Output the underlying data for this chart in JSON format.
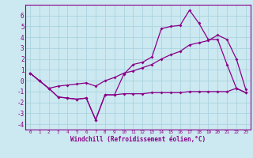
{
  "xlabel": "Windchill (Refroidissement éolien,°C)",
  "x": [
    0,
    1,
    2,
    3,
    4,
    5,
    6,
    7,
    8,
    9,
    10,
    11,
    12,
    13,
    14,
    15,
    16,
    17,
    18,
    19,
    20,
    21,
    22,
    23
  ],
  "line1": [
    0.7,
    0.0,
    -0.7,
    -1.5,
    -1.6,
    -1.7,
    -1.6,
    -3.6,
    -1.3,
    -1.3,
    -1.2,
    -1.2,
    -1.2,
    -1.1,
    -1.1,
    -1.1,
    -1.1,
    -1.0,
    -1.0,
    -1.0,
    -1.0,
    -1.0,
    -0.7,
    -1.1
  ],
  "line2": [
    0.7,
    0.0,
    -0.7,
    -1.5,
    -1.6,
    -1.7,
    -1.6,
    -3.6,
    -1.3,
    -1.3,
    0.6,
    1.5,
    1.7,
    2.2,
    4.8,
    5.0,
    5.1,
    6.5,
    5.3,
    3.8,
    3.8,
    1.5,
    -0.7,
    -1.1
  ],
  "line3": [
    0.7,
    0.0,
    -0.7,
    -0.5,
    -0.4,
    -0.3,
    -0.2,
    -0.5,
    0.0,
    0.3,
    0.7,
    0.9,
    1.2,
    1.5,
    2.0,
    2.4,
    2.7,
    3.3,
    3.5,
    3.7,
    4.2,
    3.8,
    2.0,
    -0.8
  ],
  "ylim": [
    -4.5,
    7
  ],
  "xlim": [
    -0.5,
    23.5
  ],
  "yticks": [
    -4,
    -3,
    -2,
    -1,
    0,
    1,
    2,
    3,
    4,
    5,
    6
  ],
  "xticks": [
    0,
    1,
    2,
    3,
    4,
    5,
    6,
    7,
    8,
    9,
    10,
    11,
    12,
    13,
    14,
    15,
    16,
    17,
    18,
    19,
    20,
    21,
    22,
    23
  ],
  "line_color": "#880088",
  "bg_color": "#cce8f0",
  "grid_color": "#aad4e0",
  "marker": "D",
  "markersize": 2.0,
  "linewidth": 0.9
}
